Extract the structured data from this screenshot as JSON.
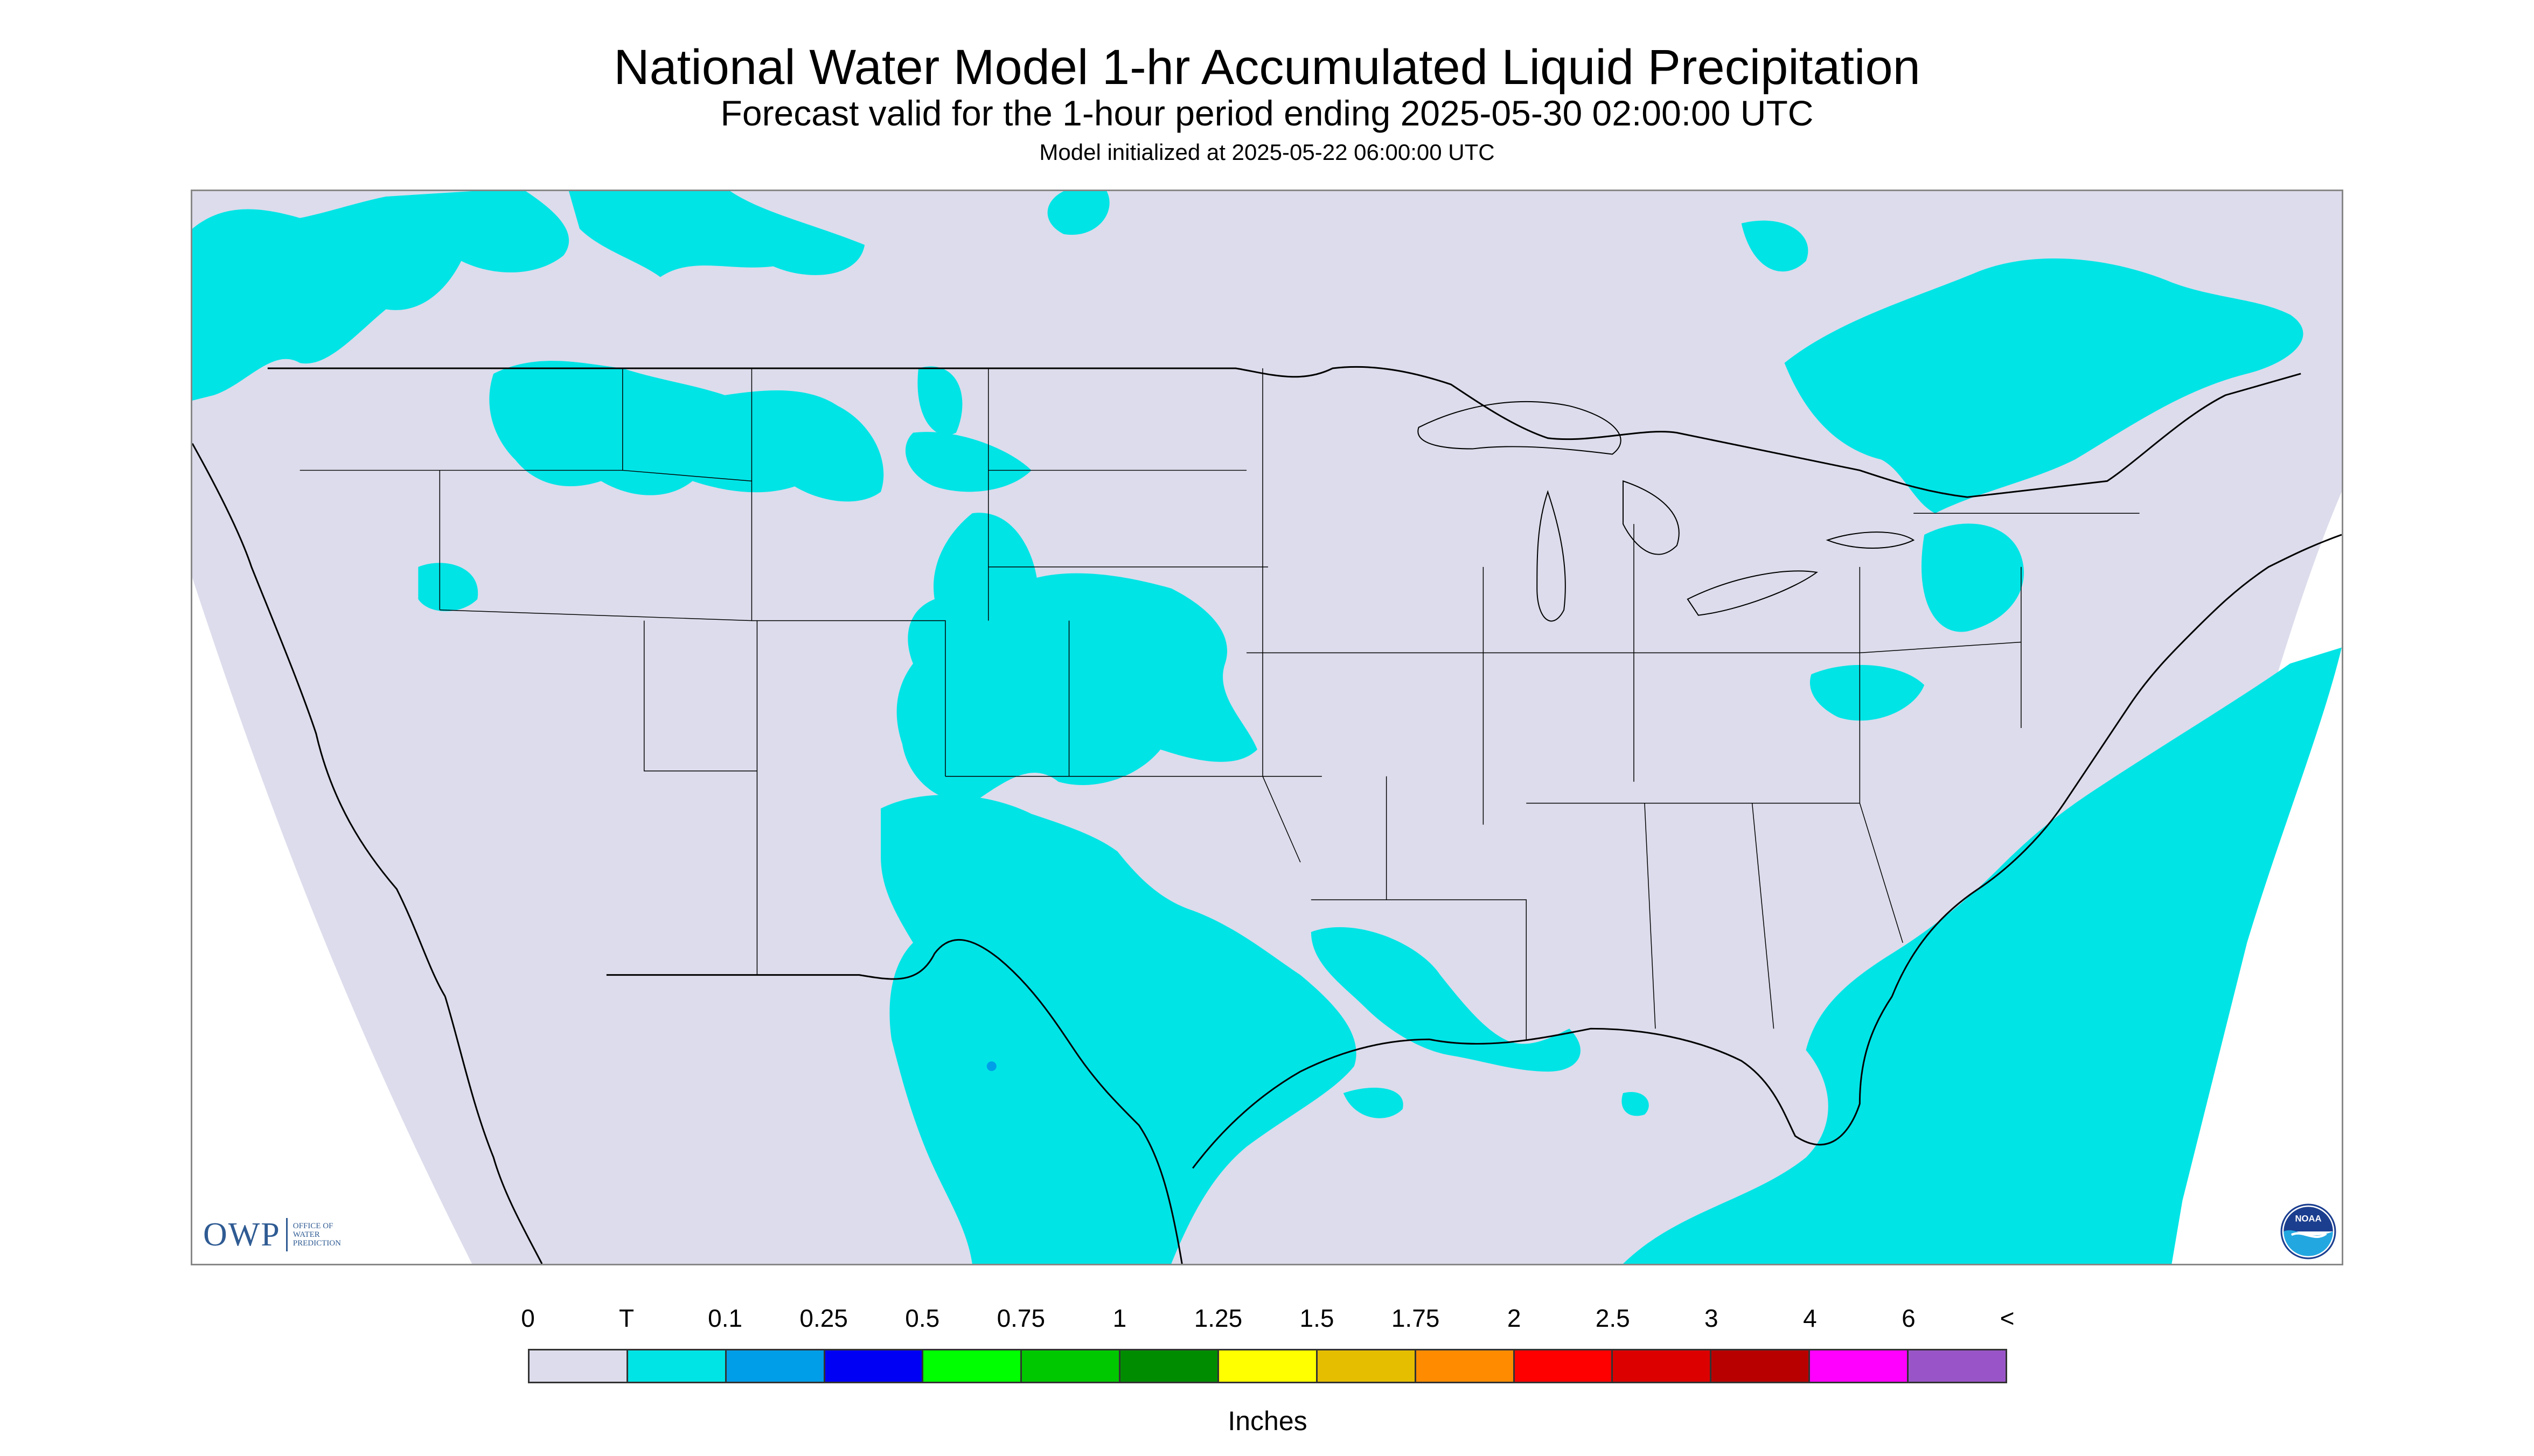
{
  "header": {
    "title": "National Water Model 1-hr Accumulated Liquid Precipitation",
    "subtitle": "Forecast valid for the 1-hour period ending 2025-05-30 02:00:00 UTC",
    "init": "Model initialized at 2025-05-22 06:00:00 UTC"
  },
  "map": {
    "region": "CONUS",
    "projection": "conic",
    "background_color": "#dcdcec",
    "outside_color": "#ffffff",
    "precip_color": "#00e4e6",
    "boundary_color": "#000000"
  },
  "logos": {
    "owp_letters": "OWP",
    "owp_org": "OFFICE OF WATER PREDICTION",
    "noaa_text": "NOAA"
  },
  "legend": {
    "labels": [
      "0",
      "T",
      "0.1",
      "0.25",
      "0.5",
      "0.75",
      "1",
      "1.25",
      "1.5",
      "1.75",
      "2",
      "2.5",
      "3",
      "4",
      "6",
      "<"
    ],
    "colors": [
      "#dcdcec",
      "#00e4e6",
      "#009ee8",
      "#0000f5",
      "#00ff00",
      "#00c800",
      "#008c00",
      "#ffff00",
      "#e6be00",
      "#ff8c00",
      "#ff0000",
      "#dc0000",
      "#b90000",
      "#ff00ff",
      "#9955c8"
    ],
    "units": "Inches"
  }
}
